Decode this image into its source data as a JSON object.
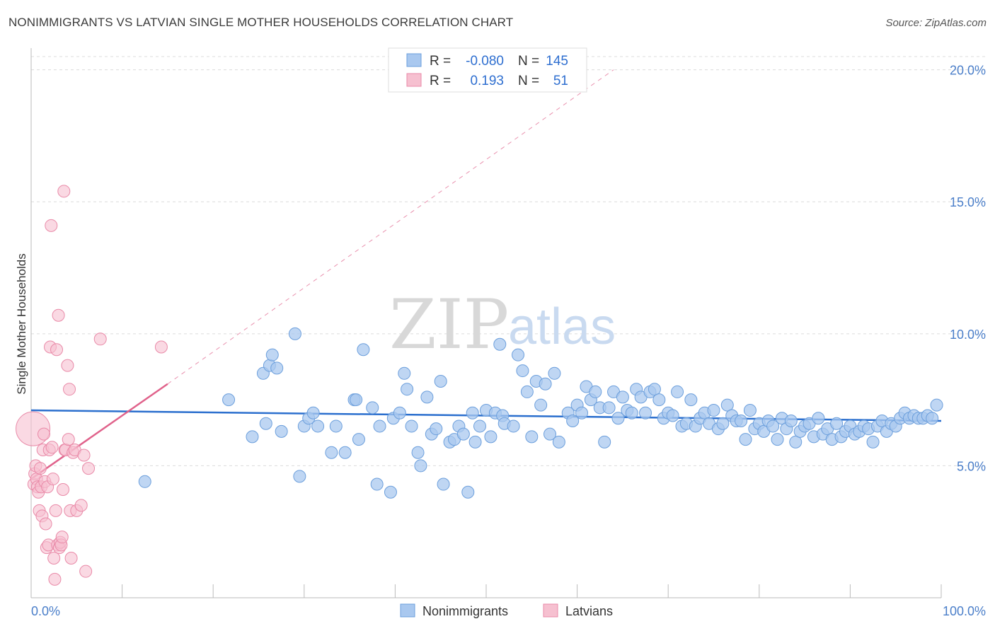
{
  "title": "NONIMMIGRANTS VS LATVIAN SINGLE MOTHER HOUSEHOLDS CORRELATION CHART",
  "source": "Source: ZipAtlas.com",
  "watermark": {
    "zip": "ZIP",
    "atlas": "atlas"
  },
  "colors": {
    "blue_fill": "#a9c8ef",
    "blue_stroke": "#6c9fdc",
    "blue_line": "#2b6fce",
    "pink_fill": "#f6c0d0",
    "pink_stroke": "#e98aa8",
    "pink_line": "#e0628b",
    "tick_text": "#4a7ec9",
    "grid": "#dcdcdc"
  },
  "legend": {
    "rows": [
      {
        "r_label": "R =",
        "r_value": "-0.080",
        "n_label": "N =",
        "n_value": "145"
      },
      {
        "r_label": "R =",
        "r_value": "0.193",
        "n_label": "N =",
        "n_value": "51"
      }
    ]
  },
  "chart_data": {
    "type": "scatter",
    "xlabel": "",
    "ylabel": "Single Mother Households",
    "xlim": [
      0,
      100
    ],
    "ylim": [
      0,
      20.5
    ],
    "x_tick_labels": [
      {
        "value": 0,
        "label": "0.0%"
      },
      {
        "value": 100,
        "label": "100.0%"
      }
    ],
    "y_tick_labels": [
      {
        "value": 5,
        "label": "5.0%"
      },
      {
        "value": 10,
        "label": "10.0%"
      },
      {
        "value": 15,
        "label": "15.0%"
      },
      {
        "value": 20,
        "label": "20.0%"
      }
    ],
    "legend_placement": "top-center",
    "series": [
      {
        "name": "Nonimmigrants",
        "color": "#a9c8ef",
        "trend": {
          "x0": 0,
          "y0": 7.1,
          "x1": 100,
          "y1": 6.7
        },
        "points": [
          [
            12.5,
            4.4
          ],
          [
            21.7,
            7.5
          ],
          [
            24.3,
            6.1
          ],
          [
            25.5,
            8.5
          ],
          [
            25.8,
            6.6
          ],
          [
            26.2,
            8.8
          ],
          [
            26.5,
            9.2
          ],
          [
            27.0,
            8.7
          ],
          [
            27.5,
            6.3
          ],
          [
            29.0,
            10.0
          ],
          [
            29.5,
            4.6
          ],
          [
            30.0,
            6.5
          ],
          [
            30.5,
            6.8
          ],
          [
            31.0,
            7.0
          ],
          [
            31.5,
            6.5
          ],
          [
            33.0,
            5.5
          ],
          [
            33.5,
            6.5
          ],
          [
            34.5,
            5.5
          ],
          [
            35.5,
            7.5
          ],
          [
            35.7,
            7.5
          ],
          [
            36.0,
            6.0
          ],
          [
            36.5,
            9.4
          ],
          [
            37.5,
            7.2
          ],
          [
            38.0,
            4.3
          ],
          [
            38.3,
            6.5
          ],
          [
            39.5,
            4.0
          ],
          [
            39.8,
            6.8
          ],
          [
            40.5,
            7.0
          ],
          [
            41.0,
            8.5
          ],
          [
            41.3,
            7.9
          ],
          [
            41.8,
            6.5
          ],
          [
            42.5,
            5.5
          ],
          [
            42.8,
            5.0
          ],
          [
            43.5,
            7.6
          ],
          [
            44.0,
            6.2
          ],
          [
            44.5,
            6.4
          ],
          [
            45.0,
            8.2
          ],
          [
            45.3,
            4.3
          ],
          [
            46.0,
            5.9
          ],
          [
            46.5,
            6.0
          ],
          [
            47.0,
            6.5
          ],
          [
            47.5,
            6.2
          ],
          [
            48.0,
            4.0
          ],
          [
            48.5,
            7.0
          ],
          [
            48.8,
            5.9
          ],
          [
            49.3,
            6.5
          ],
          [
            50.0,
            7.1
          ],
          [
            50.5,
            6.1
          ],
          [
            51.0,
            7.0
          ],
          [
            51.5,
            9.6
          ],
          [
            51.8,
            6.9
          ],
          [
            52.0,
            6.6
          ],
          [
            53.0,
            6.5
          ],
          [
            53.5,
            9.2
          ],
          [
            54.0,
            8.6
          ],
          [
            54.5,
            7.8
          ],
          [
            55.0,
            6.1
          ],
          [
            55.5,
            8.2
          ],
          [
            56.0,
            7.3
          ],
          [
            56.5,
            8.1
          ],
          [
            57.0,
            6.2
          ],
          [
            57.5,
            8.5
          ],
          [
            58.0,
            5.9
          ],
          [
            59.0,
            7.0
          ],
          [
            59.5,
            6.7
          ],
          [
            60.0,
            7.3
          ],
          [
            60.5,
            7.0
          ],
          [
            61.0,
            8.0
          ],
          [
            61.5,
            7.5
          ],
          [
            62.0,
            7.8
          ],
          [
            62.5,
            7.2
          ],
          [
            63.0,
            5.9
          ],
          [
            63.5,
            7.2
          ],
          [
            64.0,
            7.8
          ],
          [
            64.5,
            6.8
          ],
          [
            65.0,
            7.6
          ],
          [
            65.5,
            7.1
          ],
          [
            66.0,
            7.0
          ],
          [
            66.5,
            7.9
          ],
          [
            67.0,
            7.6
          ],
          [
            67.5,
            7.0
          ],
          [
            68.0,
            7.8
          ],
          [
            68.5,
            7.9
          ],
          [
            69.0,
            7.5
          ],
          [
            69.5,
            6.8
          ],
          [
            70.0,
            7.0
          ],
          [
            70.5,
            6.9
          ],
          [
            71.0,
            7.8
          ],
          [
            71.5,
            6.5
          ],
          [
            72.0,
            6.6
          ],
          [
            72.5,
            7.5
          ],
          [
            73.0,
            6.5
          ],
          [
            73.5,
            6.8
          ],
          [
            74.0,
            7.0
          ],
          [
            74.5,
            6.6
          ],
          [
            75.0,
            7.1
          ],
          [
            75.5,
            6.4
          ],
          [
            76.0,
            6.6
          ],
          [
            76.5,
            7.3
          ],
          [
            77.0,
            6.9
          ],
          [
            77.5,
            6.7
          ],
          [
            78.0,
            6.7
          ],
          [
            78.5,
            6.0
          ],
          [
            79.0,
            7.1
          ],
          [
            79.5,
            6.4
          ],
          [
            80.0,
            6.6
          ],
          [
            80.5,
            6.3
          ],
          [
            81.0,
            6.7
          ],
          [
            81.5,
            6.5
          ],
          [
            82.0,
            6.0
          ],
          [
            82.5,
            6.8
          ],
          [
            83.0,
            6.4
          ],
          [
            83.5,
            6.7
          ],
          [
            84.0,
            5.9
          ],
          [
            84.5,
            6.3
          ],
          [
            85.0,
            6.5
          ],
          [
            85.5,
            6.6
          ],
          [
            86.0,
            6.1
          ],
          [
            86.5,
            6.8
          ],
          [
            87.0,
            6.2
          ],
          [
            87.5,
            6.4
          ],
          [
            88.0,
            6.0
          ],
          [
            88.5,
            6.6
          ],
          [
            89.0,
            6.1
          ],
          [
            89.5,
            6.3
          ],
          [
            90.0,
            6.5
          ],
          [
            90.5,
            6.2
          ],
          [
            91.0,
            6.3
          ],
          [
            91.5,
            6.5
          ],
          [
            92.0,
            6.4
          ],
          [
            92.5,
            5.9
          ],
          [
            93.0,
            6.5
          ],
          [
            93.5,
            6.7
          ],
          [
            94.0,
            6.3
          ],
          [
            94.5,
            6.6
          ],
          [
            95.0,
            6.5
          ],
          [
            95.5,
            6.8
          ],
          [
            96.0,
            7.0
          ],
          [
            96.5,
            6.8
          ],
          [
            97.0,
            6.9
          ],
          [
            97.5,
            6.8
          ],
          [
            98.0,
            6.8
          ],
          [
            98.5,
            6.9
          ],
          [
            99.0,
            6.8
          ],
          [
            99.5,
            7.3
          ]
        ]
      },
      {
        "name": "Latvians",
        "color": "#f6c0d0",
        "trend": {
          "x0": 0,
          "y0": 4.5,
          "x1": 15,
          "y1": 8.1
        },
        "trend_extended": {
          "x0": 15,
          "y0": 8.1,
          "x1": 64,
          "y1": 20.0
        },
        "points": [
          [
            0.2,
            6.4
          ],
          [
            0.3,
            4.3
          ],
          [
            0.4,
            4.7
          ],
          [
            0.5,
            5.0
          ],
          [
            0.6,
            4.5
          ],
          [
            0.7,
            4.2
          ],
          [
            0.8,
            4.0
          ],
          [
            0.9,
            3.3
          ],
          [
            1.0,
            4.9
          ],
          [
            1.1,
            4.2
          ],
          [
            1.2,
            3.1
          ],
          [
            1.3,
            5.6
          ],
          [
            1.4,
            6.2
          ],
          [
            1.5,
            4.4
          ],
          [
            1.6,
            2.8
          ],
          [
            1.7,
            1.9
          ],
          [
            1.8,
            4.2
          ],
          [
            1.9,
            2.0
          ],
          [
            2.0,
            5.6
          ],
          [
            2.1,
            9.5
          ],
          [
            2.2,
            14.1
          ],
          [
            2.3,
            5.7
          ],
          [
            2.4,
            4.5
          ],
          [
            2.5,
            1.5
          ],
          [
            2.6,
            0.7
          ],
          [
            2.7,
            3.3
          ],
          [
            2.8,
            9.4
          ],
          [
            2.9,
            2.0
          ],
          [
            3.0,
            10.7
          ],
          [
            3.1,
            1.9
          ],
          [
            3.2,
            2.1
          ],
          [
            3.3,
            2.0
          ],
          [
            3.4,
            2.3
          ],
          [
            3.5,
            4.1
          ],
          [
            3.6,
            15.4
          ],
          [
            3.7,
            5.6
          ],
          [
            3.8,
            5.6
          ],
          [
            4.0,
            8.8
          ],
          [
            4.1,
            6.0
          ],
          [
            4.2,
            7.9
          ],
          [
            4.3,
            3.3
          ],
          [
            4.4,
            1.5
          ],
          [
            4.6,
            5.5
          ],
          [
            4.8,
            5.6
          ],
          [
            5.0,
            3.3
          ],
          [
            5.5,
            3.5
          ],
          [
            5.8,
            5.4
          ],
          [
            6.0,
            1.0
          ],
          [
            6.3,
            4.9
          ],
          [
            7.6,
            9.8
          ],
          [
            14.3,
            9.5
          ]
        ]
      }
    ],
    "bottom_legend": [
      "Nonimmigrants",
      "Latvians"
    ]
  }
}
